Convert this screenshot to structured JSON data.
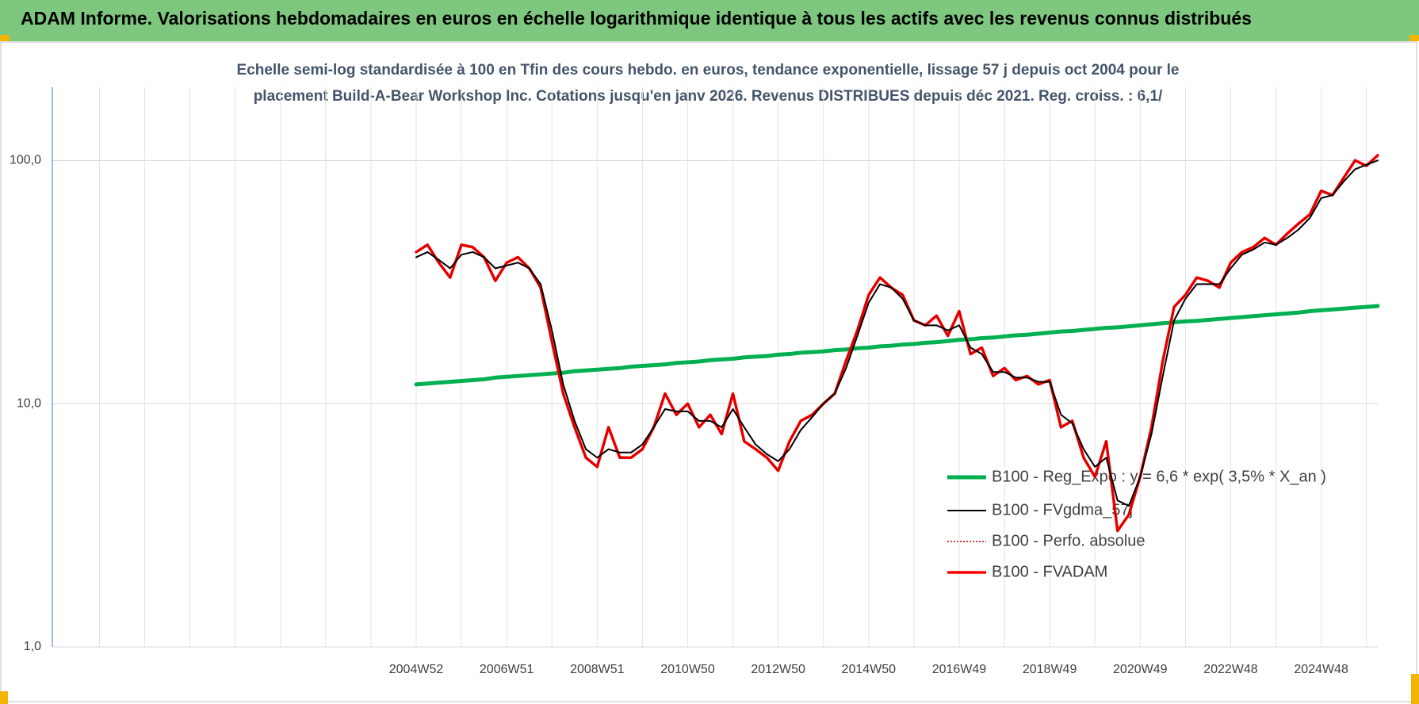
{
  "chart_data": {
    "type": "line",
    "title": "ADAM Informe. Valorisations hebdomadaires en euros en échelle logarithmique identique à tous les actifs avec les revenus connus distribués",
    "subtitle": [
      "Echelle semi-log standardisée à 100 en Tfin des cours hebdo. en euros, tendance exponentielle, lissage 57 j depuis oct 2004 pour le",
      "placement Build-A-Bear Workshop Inc.  Cotations jusqu'en janv 2026. Revenus DISTRIBUES depuis déc 2021. Reg. croiss. : 6,1/"
    ],
    "categories": [
      "2004W52",
      null,
      null,
      null,
      null,
      null,
      null,
      null,
      "2006W51",
      null,
      null,
      null,
      null,
      null,
      null,
      null,
      "2008W51",
      null,
      null,
      null,
      null,
      null,
      null,
      null,
      "2010W50",
      null,
      null,
      null,
      null,
      null,
      null,
      null,
      "2012W50",
      null,
      null,
      null,
      null,
      null,
      null,
      null,
      "2014W50",
      null,
      null,
      null,
      null,
      null,
      null,
      null,
      "2016W49",
      null,
      null,
      null,
      null,
      null,
      null,
      null,
      "2018W49",
      null,
      null,
      null,
      null,
      null,
      null,
      null,
      "2020W49",
      null,
      null,
      null,
      null,
      null,
      null,
      null,
      "2022W48",
      null,
      null,
      null,
      null,
      null,
      null,
      null,
      "2024W48",
      null,
      null,
      null,
      null,
      null
    ],
    "series": [
      {
        "name": "B100 - Reg_Expo : y = 6,6 * exp( 3,5% *  X_an )",
        "color": "#00b050",
        "values": [
          12.0,
          12.1,
          12.2,
          12.3,
          12.4,
          12.5,
          12.6,
          12.8,
          12.9,
          13.0,
          13.1,
          13.2,
          13.3,
          13.4,
          13.6,
          13.7,
          13.8,
          13.9,
          14.0,
          14.2,
          14.3,
          14.4,
          14.5,
          14.7,
          14.8,
          14.9,
          15.1,
          15.2,
          15.3,
          15.5,
          15.6,
          15.7,
          15.9,
          16.0,
          16.2,
          16.3,
          16.4,
          16.6,
          16.7,
          16.9,
          17.0,
          17.2,
          17.3,
          17.5,
          17.6,
          17.8,
          17.9,
          18.1,
          18.3,
          18.4,
          18.6,
          18.7,
          18.9,
          19.1,
          19.2,
          19.4,
          19.6,
          19.8,
          19.9,
          20.1,
          20.3,
          20.5,
          20.6,
          20.8,
          21.0,
          21.2,
          21.4,
          21.6,
          21.8,
          21.9,
          22.1,
          22.3,
          22.5,
          22.7,
          22.9,
          23.1,
          23.3,
          23.5,
          23.7,
          24.0,
          24.2,
          24.4,
          24.6,
          24.8,
          25.0,
          25.2
        ]
      },
      {
        "name": "B100 - FVgdma_57j",
        "color": "#000000",
        "values": [
          40,
          42,
          39,
          36,
          41,
          42,
          40,
          36,
          37,
          38,
          36,
          31,
          20,
          12,
          8.5,
          6.5,
          6,
          6.5,
          6.3,
          6.3,
          6.8,
          8,
          9.5,
          9.3,
          9.3,
          8.5,
          8.5,
          8,
          9.5,
          8,
          6.8,
          6.2,
          5.8,
          6.5,
          7.8,
          8.8,
          10,
          11,
          14,
          19,
          26,
          31,
          30,
          27,
          22,
          21,
          21,
          20,
          21,
          17,
          16,
          13.5,
          13.5,
          12.8,
          12.8,
          12.3,
          12.3,
          9,
          8.3,
          6.5,
          5.5,
          6,
          4,
          3.8,
          5,
          7.5,
          13,
          22,
          27,
          31,
          31,
          31,
          36,
          41,
          43,
          46,
          45,
          48,
          52,
          58,
          70,
          72,
          82,
          92,
          96,
          100
        ]
      },
      {
        "name": "B100 - Perfo. absolue",
        "color": "#c00000",
        "dash": "dotted",
        "values": [
          42,
          45,
          38,
          33,
          45,
          44,
          40,
          32,
          38,
          40,
          36,
          30,
          18,
          11,
          8,
          6,
          5.5,
          8,
          6,
          6,
          6.5,
          8,
          11,
          9,
          10,
          8,
          9,
          7.5,
          11,
          7,
          6.5,
          6,
          5.3,
          7,
          8.5,
          9,
          10,
          11,
          15,
          20,
          28,
          33,
          30,
          28,
          22,
          21,
          23,
          19,
          24,
          16,
          17,
          13,
          14,
          12.5,
          13,
          12,
          12.5,
          8,
          8.5,
          6,
          5,
          7,
          3,
          3.5,
          5,
          8,
          15,
          25,
          28,
          33,
          32,
          30,
          38,
          42,
          44,
          48,
          45,
          50,
          55,
          60,
          75,
          72,
          85,
          100,
          95,
          105
        ]
      },
      {
        "name": "B100 - FVADAM",
        "color": "#ff0000",
        "values": [
          42,
          45,
          38,
          33,
          45,
          44,
          40,
          32,
          38,
          40,
          36,
          30,
          18,
          11,
          8,
          6,
          5.5,
          8,
          6,
          6,
          6.5,
          8,
          11,
          9,
          10,
          8,
          9,
          7.5,
          11,
          7,
          6.5,
          6,
          5.3,
          7,
          8.5,
          9,
          10,
          11,
          15,
          20,
          28,
          33,
          30,
          28,
          22,
          21,
          23,
          19,
          24,
          16,
          17,
          13,
          14,
          12.5,
          13,
          12,
          12.5,
          8,
          8.5,
          6,
          5,
          7,
          3,
          3.5,
          5,
          8,
          15,
          25,
          28,
          33,
          32,
          30,
          38,
          42,
          44,
          48,
          45,
          50,
          55,
          60,
          75,
          72,
          85,
          100,
          95,
          105
        ]
      }
    ],
    "ylim": [
      1,
      200
    ],
    "yticks": [
      {
        "value": 1,
        "label": "1,0"
      },
      {
        "value": 10,
        "label": "10,0"
      },
      {
        "value": 100,
        "label": "100,0"
      }
    ],
    "log_scale": true,
    "grid": true,
    "legend": "center right"
  }
}
